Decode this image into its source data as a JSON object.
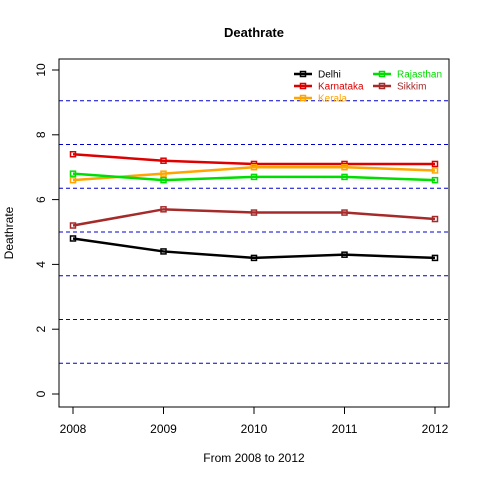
{
  "chart_data": {
    "type": "line",
    "title": "Deathrate",
    "xlabel": "From 2008 to 2012",
    "ylabel": "Deathrate",
    "x": [
      "2008",
      "2009",
      "2010",
      "2011",
      "2012"
    ],
    "xlim": [
      2008,
      2012
    ],
    "ylim": [
      0,
      10
    ],
    "y_ticks": [
      "0",
      "2",
      "4",
      "6",
      "8",
      "10"
    ],
    "series": [
      {
        "name": "Delhi",
        "color": "#000000",
        "values": [
          4.8,
          4.4,
          4.2,
          4.3,
          4.2
        ]
      },
      {
        "name": "Karnataka",
        "color": "#DD0000",
        "values": [
          7.4,
          7.2,
          7.1,
          7.1,
          7.1
        ]
      },
      {
        "name": "Kerala",
        "color": "#FFA500",
        "values": [
          6.6,
          6.8,
          7.0,
          7.0,
          6.9
        ]
      },
      {
        "name": "Rajasthan",
        "color": "#00DD00",
        "values": [
          6.8,
          6.6,
          6.7,
          6.7,
          6.6
        ]
      },
      {
        "name": "Sikkim",
        "color": "#A52A2A",
        "values": [
          5.2,
          5.7,
          5.6,
          5.6,
          5.4
        ]
      }
    ],
    "reference_lines": {
      "color": "#0000CC",
      "style": "dashed",
      "values": [
        0.95,
        2.3,
        3.65,
        5.0,
        6.35,
        7.7,
        9.05
      ]
    },
    "legend_position": "top-right",
    "grid": false
  }
}
